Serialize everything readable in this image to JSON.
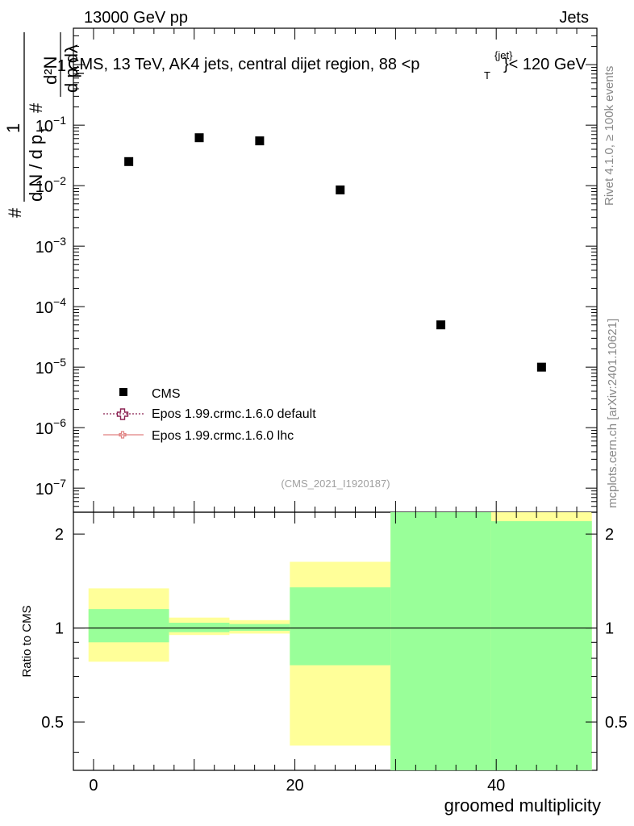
{
  "header": {
    "energy": "13000 GeV pp",
    "category": "Jets",
    "plot_title_pre": "CMS, 13 TeV, AK4 jets, central dijet region, 88 <p",
    "plot_title_sup": "{jet}",
    "plot_title_sub": "T",
    "plot_title_post": "}< 120 GeV",
    "analysis_ref": "(CMS_2021_I1920187)"
  },
  "side_labels": {
    "rivet": "Rivet 4.1.0, ≥ 100k events",
    "mcplots": "mcplots.cern.ch [arXiv:2401.10621]"
  },
  "colors": {
    "data": "#000000",
    "epos_default": "#8b2252",
    "epos_lhc": "#e08080",
    "band_outer": "#ffff99",
    "band_inner": "#99ff99"
  },
  "legend": {
    "cms": "CMS",
    "epos_default": "Epos 1.99.crmc.1.6.0 default",
    "epos_lhc": "Epos 1.99.crmc.1.6.0 lhc"
  },
  "chart_data": [
    {
      "type": "scatter",
      "panel": "main",
      "title": "CMS, 13 TeV, AK4 jets, central dijet region, 88 < pT{jet} < 120 GeV",
      "ylabel": "1/(dN/dpT) dN/(dpT dλ)",
      "yscale": "log",
      "ylim": [
        4e-08,
        4
      ],
      "xlim": [
        -2,
        50
      ],
      "ytick_labels": [
        "1",
        "10−1",
        "10−2",
        "10−3",
        "10−4",
        "10−5",
        "10−6",
        "10−7"
      ],
      "series": [
        {
          "name": "CMS",
          "x": [
            3.5,
            10.5,
            16.5,
            24.5,
            34.5,
            44.5
          ],
          "y": [
            0.025,
            0.062,
            0.055,
            0.0085,
            5e-05,
            1e-05
          ]
        }
      ]
    },
    {
      "type": "area",
      "panel": "ratio",
      "ylabel": "Ratio to CMS",
      "xlabel": "groomed multiplicity",
      "ylim": [
        0.35,
        2.35
      ],
      "xlim": [
        -2,
        50
      ],
      "xtick_labels": [
        "0",
        "20",
        "40"
      ],
      "ytick_labels": [
        "0.5",
        "1",
        "2"
      ],
      "reference_line": 1.0,
      "bins": [
        {
          "x_low": -0.5,
          "x_high": 7.5,
          "outer": [
            0.78,
            1.34
          ],
          "inner": [
            0.9,
            1.15
          ]
        },
        {
          "x_low": 7.5,
          "x_high": 13.5,
          "outer": [
            0.95,
            1.08
          ],
          "inner": [
            0.97,
            1.04
          ]
        },
        {
          "x_low": 13.5,
          "x_high": 19.5,
          "outer": [
            0.96,
            1.06
          ],
          "inner": [
            0.98,
            1.03
          ]
        },
        {
          "x_low": 19.5,
          "x_high": 29.5,
          "outer": [
            0.42,
            1.63
          ],
          "inner": [
            0.76,
            1.35
          ]
        },
        {
          "x_low": 29.5,
          "x_high": 39.5,
          "outer": [
            0.35,
            2.35
          ],
          "inner": [
            0.35,
            2.35
          ]
        },
        {
          "x_low": 39.5,
          "x_high": 49.5,
          "outer": [
            0.35,
            2.35
          ],
          "inner": [
            0.35,
            2.2
          ]
        }
      ]
    }
  ]
}
